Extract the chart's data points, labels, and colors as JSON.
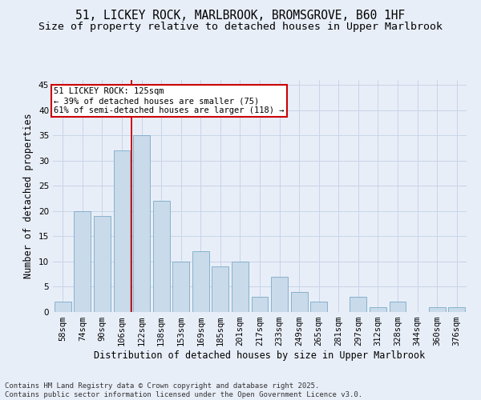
{
  "title_line1": "51, LICKEY ROCK, MARLBROOK, BROMSGROVE, B60 1HF",
  "title_line2": "Size of property relative to detached houses in Upper Marlbrook",
  "xlabel": "Distribution of detached houses by size in Upper Marlbrook",
  "ylabel": "Number of detached properties",
  "bar_labels": [
    "58sqm",
    "74sqm",
    "90sqm",
    "106sqm",
    "122sqm",
    "138sqm",
    "153sqm",
    "169sqm",
    "185sqm",
    "201sqm",
    "217sqm",
    "233sqm",
    "249sqm",
    "265sqm",
    "281sqm",
    "297sqm",
    "312sqm",
    "328sqm",
    "344sqm",
    "360sqm",
    "376sqm"
  ],
  "bar_values": [
    2,
    20,
    19,
    32,
    35,
    22,
    10,
    12,
    9,
    10,
    3,
    7,
    4,
    2,
    0,
    3,
    1,
    2,
    0,
    1,
    1
  ],
  "bar_color": "#c9daea",
  "bar_edge_color": "#7aaac8",
  "vline_index": 4,
  "vline_color": "#cc0000",
  "annotation_text": "51 LICKEY ROCK: 125sqm\n← 39% of detached houses are smaller (75)\n61% of semi-detached houses are larger (118) →",
  "annotation_box_facecolor": "#ffffff",
  "annotation_box_edgecolor": "#cc0000",
  "ylim": [
    0,
    46
  ],
  "yticks": [
    0,
    5,
    10,
    15,
    20,
    25,
    30,
    35,
    40,
    45
  ],
  "footnote": "Contains HM Land Registry data © Crown copyright and database right 2025.\nContains public sector information licensed under the Open Government Licence v3.0.",
  "background_color": "#e8eef8",
  "grid_color": "#c8d4e8",
  "title_fontsize": 10.5,
  "subtitle_fontsize": 9.5,
  "axis_label_fontsize": 8.5,
  "tick_fontsize": 7.5,
  "annotation_fontsize": 7.5,
  "footnote_fontsize": 6.5
}
